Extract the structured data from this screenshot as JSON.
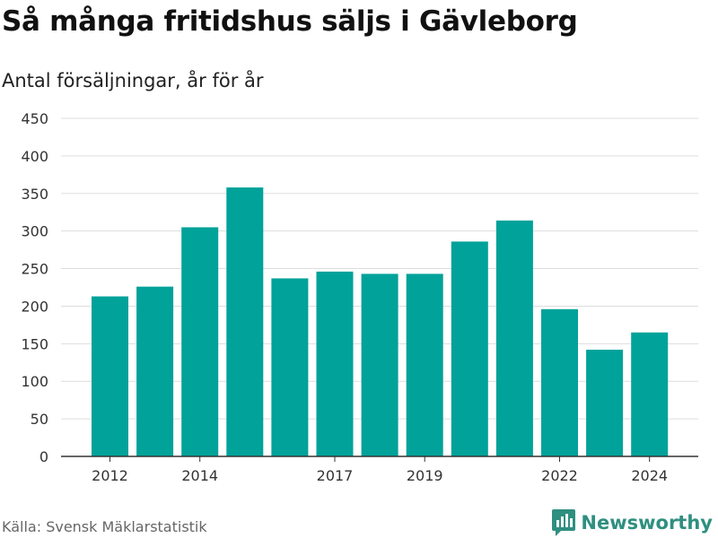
{
  "header": {
    "title": "Så många fritidshus säljs i Gävleborg",
    "subtitle": "Antal försäljningar, år för år"
  },
  "footer": {
    "source": "Källa: Svensk Mäklarstatistik",
    "brand": "Newsworthy",
    "brand_icon": "bar-chart-logo-icon"
  },
  "colors": {
    "bar": "#00A29A",
    "grid": "#dddddd",
    "axis": "#333333",
    "brand": "#2f8f80"
  },
  "chart_data": {
    "type": "bar",
    "title": "Så många fritidshus säljs i Gävleborg",
    "subtitle": "Antal försäljningar, år för år",
    "categories": [
      2012,
      2013,
      2014,
      2015,
      2016,
      2017,
      2018,
      2019,
      2020,
      2021,
      2022,
      2023,
      2024
    ],
    "values": [
      213,
      226,
      305,
      358,
      237,
      246,
      243,
      243,
      286,
      314,
      196,
      142,
      165
    ],
    "x_tick_labels": [
      "2012",
      "2014",
      "2017",
      "2019",
      "2022",
      "2024"
    ],
    "y_ticks": [
      0,
      50,
      100,
      150,
      200,
      250,
      300,
      350,
      400,
      450
    ],
    "ylim": [
      0,
      450
    ],
    "xlabel": "",
    "ylabel": "",
    "grid": true,
    "legend": "none"
  }
}
